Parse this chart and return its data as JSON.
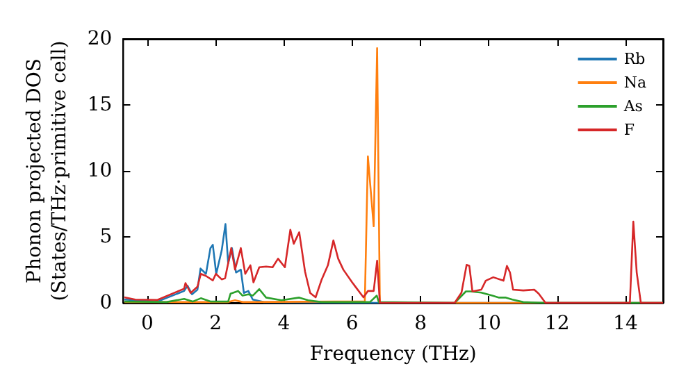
{
  "chart_data": {
    "type": "line",
    "xlabel": "Frequency (THz)",
    "ylabel": "Phonon projected DOS\n(States/THz·primitive cell)",
    "xlim": [
      -0.7,
      15.1
    ],
    "ylim": [
      0,
      20
    ],
    "xticks": [
      0,
      2,
      4,
      6,
      8,
      10,
      12,
      14
    ],
    "yticks": [
      0,
      5,
      10,
      15,
      20
    ],
    "grid": false,
    "legend": "top right",
    "marker": "none",
    "line_style": "solid",
    "series": [
      {
        "name": "Rb",
        "color": "#1f77b4",
        "x": [
          -0.67,
          0.3,
          1.08,
          1.18,
          1.31,
          1.47,
          1.56,
          1.72,
          1.85,
          1.92,
          2.02,
          2.18,
          2.29,
          2.37,
          2.48,
          2.6,
          2.74,
          2.83,
          2.96,
          3.09,
          3.41,
          6.8,
          15.1
        ],
        "values": [
          0.25,
          0.1,
          0.9,
          1.3,
          0.65,
          1.0,
          2.6,
          2.2,
          4.15,
          4.4,
          2.2,
          3.97,
          5.97,
          3.0,
          4.15,
          2.3,
          2.52,
          0.75,
          0.9,
          0.25,
          0.06,
          0,
          0
        ]
      },
      {
        "name": "Na",
        "color": "#ff7f0e",
        "x": [
          -0.67,
          2.37,
          2.57,
          2.8,
          5.49,
          6.33,
          6.37,
          6.46,
          6.63,
          6.73,
          6.81,
          15.1
        ],
        "values": [
          0.06,
          0.06,
          0.2,
          0.06,
          0.1,
          0.1,
          0.06,
          11.1,
          5.8,
          19.3,
          0,
          0
        ]
      },
      {
        "name": "As",
        "color": "#2ca02c",
        "x": [
          -0.67,
          0.56,
          1.08,
          1.33,
          1.57,
          1.85,
          2.37,
          2.44,
          2.66,
          2.79,
          2.96,
          3.09,
          3.28,
          3.48,
          3.93,
          4.45,
          4.71,
          5.1,
          6.52,
          6.72,
          6.78,
          9.0,
          9.33,
          9.46,
          9.78,
          10.1,
          10.3,
          10.5,
          10.69,
          11.01,
          11.66,
          15.1
        ],
        "values": [
          0.1,
          0.06,
          0.3,
          0.1,
          0.35,
          0.1,
          0.1,
          0.7,
          0.9,
          0.55,
          0.65,
          0.55,
          1.04,
          0.4,
          0.2,
          0.4,
          0.2,
          0.06,
          0.06,
          0.55,
          0.06,
          0,
          0.87,
          0.87,
          0.78,
          0.55,
          0.4,
          0.4,
          0.25,
          0.06,
          0,
          0
        ]
      },
      {
        "name": "F",
        "color": "#d62728",
        "x": [
          -0.67,
          -0.35,
          0.3,
          1.08,
          1.12,
          1.27,
          1.47,
          1.57,
          1.72,
          1.92,
          2.01,
          2.18,
          2.28,
          2.46,
          2.57,
          2.74,
          2.87,
          3.02,
          3.11,
          3.28,
          3.48,
          3.67,
          3.83,
          4.03,
          4.19,
          4.29,
          4.45,
          4.62,
          4.77,
          4.93,
          5.1,
          5.29,
          5.45,
          5.59,
          5.74,
          6.0,
          6.33,
          6.46,
          6.63,
          6.73,
          6.81,
          9.0,
          9.2,
          9.35,
          9.43,
          9.52,
          9.78,
          9.91,
          10.13,
          10.43,
          10.53,
          10.62,
          10.71,
          11.01,
          11.33,
          11.46,
          11.66,
          14.13,
          14.23,
          14.33,
          14.45,
          15.1
        ],
        "values": [
          0.42,
          0.25,
          0.22,
          1.07,
          1.5,
          0.75,
          1.22,
          2.2,
          2.04,
          1.7,
          2.2,
          1.78,
          1.87,
          4.15,
          2.52,
          4.15,
          2.2,
          2.85,
          1.55,
          2.7,
          2.75,
          2.7,
          3.35,
          2.7,
          5.54,
          4.48,
          5.35,
          2.37,
          0.75,
          0.42,
          1.72,
          2.85,
          4.73,
          3.35,
          2.52,
          1.55,
          0.42,
          0.9,
          0.9,
          3.2,
          0,
          0,
          0.78,
          2.88,
          2.8,
          0.87,
          1.0,
          1.68,
          1.94,
          1.68,
          2.8,
          2.3,
          1.0,
          0.94,
          1.0,
          0.7,
          0,
          0,
          6.15,
          2.3,
          0,
          0
        ]
      }
    ]
  }
}
